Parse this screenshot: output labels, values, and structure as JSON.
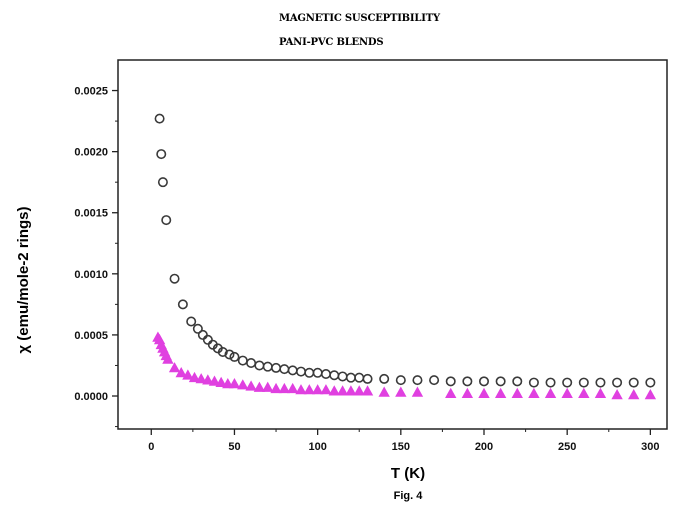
{
  "chart_data": {
    "type": "scatter",
    "title": "MAGNETIC SUSCEPTIBILITY",
    "subtitle": "PANI-PVC BLENDS",
    "xlabel": "T (K)",
    "ylabel": "χ (emu/mole-2 rings)",
    "caption": "Fig. 4",
    "xlim": [
      -20,
      310
    ],
    "ylim": [
      -0.00027,
      0.00275
    ],
    "x_ticks": [
      0,
      50,
      100,
      150,
      200,
      250,
      300
    ],
    "x_tick_labels": [
      "0",
      "50",
      "100",
      "150",
      "200",
      "250",
      "300"
    ],
    "y_ticks": [
      0.0,
      0.0005,
      0.001,
      0.0015,
      0.002,
      0.0025
    ],
    "y_tick_labels": [
      "0.0000",
      "0.0005",
      "0.0010",
      "0.0015",
      "0.0020",
      "0.0025"
    ],
    "grid": false,
    "series": [
      {
        "marker": "circle",
        "color": "#3a3a3a",
        "x": [
          5,
          6,
          7,
          9,
          14,
          19,
          24,
          28,
          31,
          34,
          37,
          40,
          43,
          47,
          50,
          55,
          60,
          65,
          70,
          75,
          80,
          85,
          90,
          95,
          100,
          105,
          110,
          115,
          120,
          125,
          130,
          140,
          150,
          160,
          170,
          180,
          190,
          200,
          210,
          220,
          230,
          240,
          250,
          260,
          270,
          280,
          290,
          300
        ],
        "y": [
          0.00227,
          0.00198,
          0.00175,
          0.00144,
          0.00096,
          0.00075,
          0.00061,
          0.00055,
          0.0005,
          0.00046,
          0.00042,
          0.00039,
          0.00036,
          0.00034,
          0.00032,
          0.00029,
          0.00027,
          0.00025,
          0.00024,
          0.00023,
          0.00022,
          0.00021,
          0.0002,
          0.00019,
          0.00019,
          0.00018,
          0.00017,
          0.00016,
          0.00015,
          0.00015,
          0.00014,
          0.00014,
          0.00013,
          0.00013,
          0.00013,
          0.00012,
          0.00012,
          0.00012,
          0.00012,
          0.00012,
          0.00011,
          0.00011,
          0.00011,
          0.00011,
          0.00011,
          0.00011,
          0.00011,
          0.00011
        ]
      },
      {
        "marker": "triangle",
        "color": "#e040e0",
        "x": [
          4,
          5,
          6,
          7,
          8,
          9,
          10,
          14,
          18,
          22,
          26,
          30,
          34,
          38,
          42,
          46,
          50,
          55,
          60,
          65,
          70,
          75,
          80,
          85,
          90,
          95,
          100,
          105,
          110,
          115,
          120,
          125,
          130,
          140,
          150,
          160,
          180,
          190,
          200,
          210,
          220,
          230,
          240,
          250,
          260,
          270,
          280,
          290,
          300
        ],
        "y": [
          0.00048,
          0.00046,
          0.00042,
          0.00039,
          0.00036,
          0.00033,
          0.0003,
          0.00023,
          0.00019,
          0.00017,
          0.00015,
          0.00014,
          0.00013,
          0.00012,
          0.00011,
          0.0001,
          0.0001,
          9e-05,
          8e-05,
          7e-05,
          7e-05,
          6e-05,
          6e-05,
          6e-05,
          5e-05,
          5e-05,
          5e-05,
          5e-05,
          4e-05,
          4e-05,
          4e-05,
          4e-05,
          4e-05,
          3e-05,
          3e-05,
          3e-05,
          2e-05,
          2e-05,
          2e-05,
          2e-05,
          2e-05,
          2e-05,
          2e-05,
          2e-05,
          2e-05,
          2e-05,
          1e-05,
          1e-05,
          1e-05
        ]
      }
    ]
  }
}
